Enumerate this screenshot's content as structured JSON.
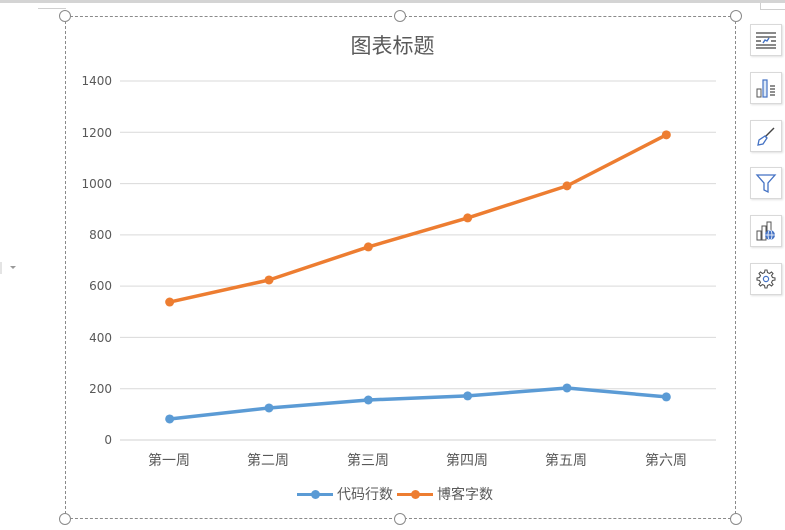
{
  "chart": {
    "title": "图表标题",
    "y_ticks": [
      "0",
      "200",
      "400",
      "600",
      "800",
      "1000",
      "1200",
      "1400"
    ],
    "x_categories": [
      "第一周",
      "第二周",
      "第三周",
      "第四周",
      "第五周",
      "第六周"
    ],
    "legend": [
      {
        "label": "代码行数",
        "color": "#5B9BD5"
      },
      {
        "label": "博客字数",
        "color": "#ED7D31"
      }
    ]
  },
  "side_toolbar": {
    "buttons": [
      {
        "name": "chart-elements-button",
        "icon": "chart-elements-icon"
      },
      {
        "name": "chart-styles-button",
        "icon": "chart-styles-icon"
      },
      {
        "name": "chart-format-button",
        "icon": "brush-icon"
      },
      {
        "name": "chart-filter-button",
        "icon": "filter-icon"
      },
      {
        "name": "online-chart-button",
        "icon": "chart-globe-icon"
      },
      {
        "name": "chart-settings-button",
        "icon": "gear-icon"
      }
    ]
  },
  "chart_data": {
    "type": "line",
    "title": "图表标题",
    "categories": [
      "第一周",
      "第二周",
      "第三周",
      "第四周",
      "第五周",
      "第六周"
    ],
    "series": [
      {
        "name": "代码行数",
        "color": "#5B9BD5",
        "values": [
          82,
          125,
          156,
          172,
          203,
          168
        ]
      },
      {
        "name": "博客字数",
        "color": "#ED7D31",
        "values": [
          538,
          624,
          753,
          866,
          991,
          1190
        ]
      }
    ],
    "xlabel": "",
    "ylabel": "",
    "ylim": [
      0,
      1400
    ],
    "yticks": [
      0,
      200,
      400,
      600,
      800,
      1000,
      1200,
      1400
    ],
    "grid": true,
    "legend_position": "bottom",
    "markers": true
  }
}
